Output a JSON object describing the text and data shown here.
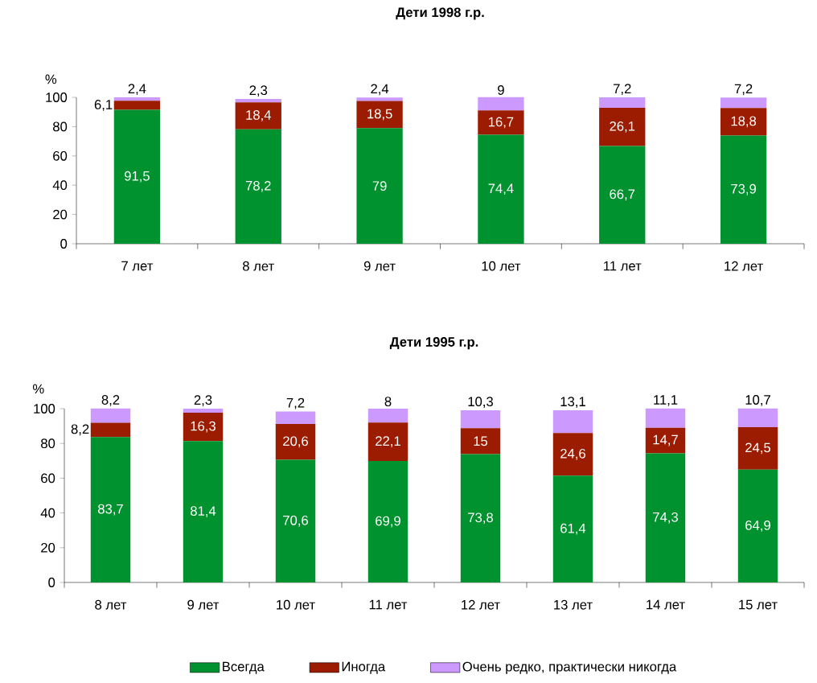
{
  "chart_data": [
    {
      "type": "bar",
      "title": "Дети 1998 г.р.",
      "ylabel": "%",
      "stacked": true,
      "categories": [
        "7 лет",
        "8 лет",
        "9 лет",
        "10 лет",
        "11 лет",
        "12 лет"
      ],
      "ylim": [
        0,
        100
      ],
      "yticks": [
        0,
        20,
        40,
        60,
        80,
        100
      ],
      "series": [
        {
          "color": "#00922f",
          "values": [
            91.5,
            78.2,
            79,
            74.4,
            66.7,
            73.9
          ],
          "value_labels": [
            "91,5",
            "78,2",
            "79",
            "74,4",
            "66,7",
            "73,9"
          ]
        },
        {
          "color": "#9b1c00",
          "values": [
            6.1,
            18.4,
            18.5,
            16.7,
            26.1,
            18.8
          ],
          "value_labels": [
            "6,1",
            "18,4",
            "18,5",
            "16,7",
            "26,1",
            "18,8"
          ]
        },
        {
          "color": "#cc99ff",
          "values": [
            2.4,
            2.3,
            2.4,
            9,
            7.2,
            7.2
          ],
          "value_labels": [
            "2,4",
            "2,3",
            "2,4",
            "9",
            "7,2",
            "7,2"
          ]
        }
      ]
    },
    {
      "type": "bar",
      "title": "Дети 1995 г.р.",
      "ylabel": "%",
      "stacked": true,
      "legend": "bottom",
      "categories": [
        "8 лет",
        "9 лет",
        "10 лет",
        "11 лет",
        "12 лет",
        "13 лет",
        "14 лет",
        "15 лет"
      ],
      "ylim": [
        0,
        100
      ],
      "yticks": [
        0,
        20,
        40,
        60,
        80,
        100
      ],
      "series": [
        {
          "name": "Всегда",
          "color": "#00922f",
          "values": [
            83.7,
            81.4,
            70.6,
            69.9,
            73.8,
            61.4,
            74.3,
            64.9
          ],
          "value_labels": [
            "83,7",
            "81,4",
            "70,6",
            "69,9",
            "73,8",
            "61,4",
            "74,3",
            "64,9"
          ]
        },
        {
          "name": "Иногда",
          "color": "#9b1c00",
          "values": [
            8.2,
            16.3,
            20.6,
            22.1,
            15,
            24.6,
            14.7,
            24.5
          ],
          "value_labels": [
            "8,2",
            "16,3",
            "20,6",
            "22,1",
            "15",
            "24,6",
            "14,7",
            "24,5"
          ]
        },
        {
          "name": "Очень редко, практически никогда",
          "color": "#cc99ff",
          "values": [
            8.2,
            2.3,
            7.2,
            8,
            10.3,
            13.1,
            11.1,
            10.7
          ],
          "value_labels": [
            "8,2",
            "2,3",
            "7,2",
            "8",
            "10,3",
            "13,1",
            "11,1",
            "10,7"
          ]
        }
      ]
    }
  ]
}
